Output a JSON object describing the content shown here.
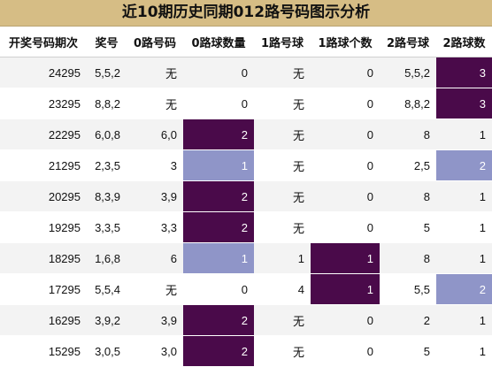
{
  "title": "近10期历史同期012路号码图示分析",
  "headers": [
    "开奖号码期次",
    "奖号",
    "0路号码",
    "0路球数量",
    "1路号球",
    "1路球个数",
    "2路号球",
    "2路球数"
  ],
  "rows": [
    {
      "cells": [
        "24295",
        "5,5,2",
        "无",
        "0",
        "无",
        "0",
        "5,5,2",
        "3"
      ],
      "hl": {
        "7": "dark"
      }
    },
    {
      "cells": [
        "23295",
        "8,8,2",
        "无",
        "0",
        "无",
        "0",
        "8,8,2",
        "3"
      ],
      "hl": {
        "7": "dark"
      }
    },
    {
      "cells": [
        "22295",
        "6,0,8",
        "6,0",
        "2",
        "无",
        "0",
        "8",
        "1"
      ],
      "hl": {
        "3": "dark"
      }
    },
    {
      "cells": [
        "21295",
        "2,3,5",
        "3",
        "1",
        "无",
        "0",
        "2,5",
        "2"
      ],
      "hl": {
        "3": "light",
        "7": "light"
      }
    },
    {
      "cells": [
        "20295",
        "8,3,9",
        "3,9",
        "2",
        "无",
        "0",
        "8",
        "1"
      ],
      "hl": {
        "3": "dark"
      }
    },
    {
      "cells": [
        "19295",
        "3,3,5",
        "3,3",
        "2",
        "无",
        "0",
        "5",
        "1"
      ],
      "hl": {
        "3": "dark"
      }
    },
    {
      "cells": [
        "18295",
        "1,6,8",
        "6",
        "1",
        "1",
        "1",
        "8",
        "1"
      ],
      "hl": {
        "3": "light",
        "5": "dark"
      }
    },
    {
      "cells": [
        "17295",
        "5,5,4",
        "无",
        "0",
        "4",
        "1",
        "5,5",
        "2"
      ],
      "hl": {
        "5": "dark",
        "7": "light"
      }
    },
    {
      "cells": [
        "16295",
        "3,9,2",
        "3,9",
        "2",
        "无",
        "0",
        "2",
        "1"
      ],
      "hl": {
        "3": "dark"
      }
    },
    {
      "cells": [
        "15295",
        "3,0,5",
        "3,0",
        "2",
        "无",
        "0",
        "5",
        "1"
      ],
      "hl": {
        "3": "dark"
      }
    }
  ],
  "colors": {
    "title_bg": "#d6bd85",
    "highlight_dark": "#4a0a4a",
    "highlight_light": "#8f95c8"
  }
}
